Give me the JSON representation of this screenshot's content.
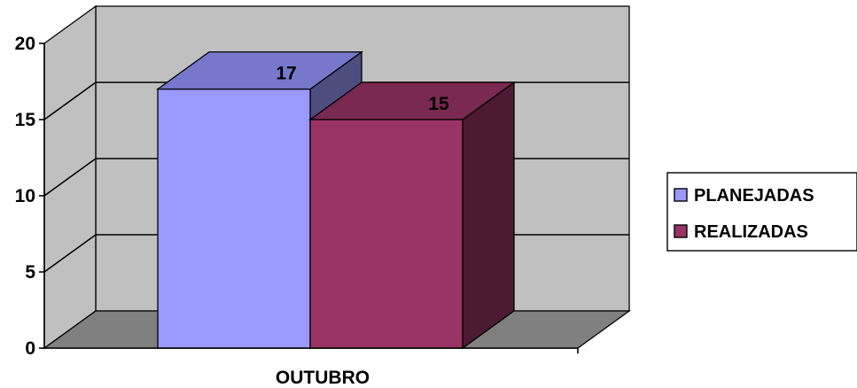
{
  "chart_data": {
    "type": "bar",
    "three_d": true,
    "categories": [
      "OUTUBRO"
    ],
    "series": [
      {
        "name": "PLANEJADAS",
        "values": [
          17
        ],
        "color": "#9999ff",
        "side_color": "#4d4d80",
        "top_color": "#7777cc"
      },
      {
        "name": "REALIZADAS",
        "values": [
          15
        ],
        "color": "#993366",
        "side_color": "#4d1a33",
        "top_color": "#7a2950"
      }
    ],
    "ylim": [
      0,
      20
    ],
    "yticks": [
      "0",
      "5",
      "10",
      "15",
      "20"
    ],
    "grid": true,
    "legend_position": "right",
    "wall_color": "#c0c0c0",
    "floor_color": "#808080"
  }
}
